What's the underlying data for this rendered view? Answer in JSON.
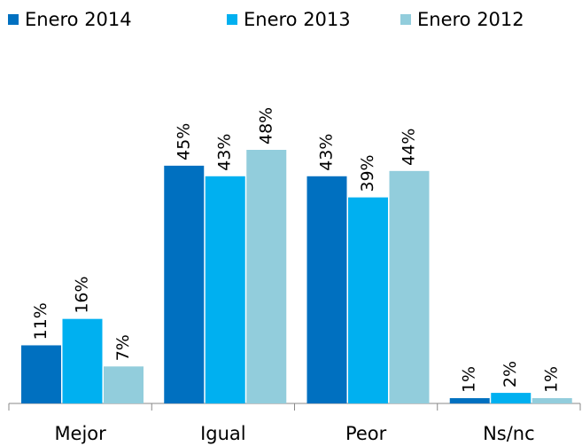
{
  "chart_data": {
    "type": "bar",
    "categories": [
      "Mejor",
      "Igual",
      "Peor",
      "Ns/nc"
    ],
    "series": [
      {
        "name": "Enero 2014",
        "color": "#0070c0",
        "values": [
          11,
          45,
          43,
          1
        ],
        "value_labels": [
          "11%",
          "45%",
          "43%",
          "1%"
        ]
      },
      {
        "name": "Enero 2013",
        "color": "#00b0f0",
        "values": [
          16,
          43,
          39,
          2
        ],
        "value_labels": [
          "16%",
          "43%",
          "39%",
          "2%"
        ]
      },
      {
        "name": "Enero 2012",
        "color": "#92cddc",
        "values": [
          7,
          48,
          44,
          1
        ],
        "value_labels": [
          "7%",
          "48%",
          "44%",
          "1%"
        ]
      }
    ]
  }
}
